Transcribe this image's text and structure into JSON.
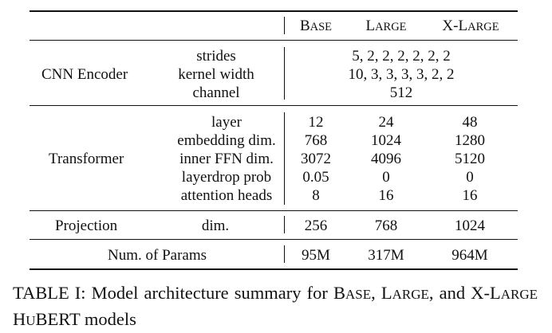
{
  "table": {
    "columns": {
      "base": {
        "first": "B",
        "rest": "ASE"
      },
      "large": {
        "first": "L",
        "rest": "ARGE"
      },
      "xlarge": {
        "prefix": "X-",
        "first": "L",
        "rest": "ARGE"
      }
    },
    "cnn_encoder": {
      "group_label": "CNN Encoder",
      "rows": [
        {
          "label": "strides",
          "shared_value": "5, 2, 2, 2, 2, 2, 2"
        },
        {
          "label": "kernel width",
          "shared_value": "10, 3, 3, 3, 3, 2, 2"
        },
        {
          "label": "channel",
          "shared_value": "512"
        }
      ]
    },
    "transformer": {
      "group_label": "Transformer",
      "rows": [
        {
          "label": "layer",
          "base": "12",
          "large": "24",
          "xlarge": "48"
        },
        {
          "label": "embedding dim.",
          "base": "768",
          "large": "1024",
          "xlarge": "1280"
        },
        {
          "label": "inner FFN dim.",
          "base": "3072",
          "large": "4096",
          "xlarge": "5120"
        },
        {
          "label": "layerdrop prob",
          "base": "0.05",
          "large": "0",
          "xlarge": "0"
        },
        {
          "label": "attention heads",
          "base": "8",
          "large": "16",
          "xlarge": "16"
        }
      ]
    },
    "projection": {
      "group_label": "Projection",
      "label": "dim.",
      "base": "256",
      "large": "768",
      "xlarge": "1024"
    },
    "params": {
      "label": "Num. of Params",
      "base": "95M",
      "large": "317M",
      "xlarge": "964M"
    }
  },
  "caption": {
    "lead": "TABLE I: Model architecture summary for ",
    "base": {
      "first": "B",
      "rest": "ASE"
    },
    "sep1": ", ",
    "large": {
      "first": "L",
      "rest": "ARGE"
    },
    "sep2": ",",
    "and": " and ",
    "xlarge": {
      "prefix": "X-",
      "first": "L",
      "rest": "ARGE"
    },
    "space": " ",
    "hubert": {
      "first": "H",
      "mid": "U",
      "rest": "BERT"
    },
    "tail": " models"
  }
}
